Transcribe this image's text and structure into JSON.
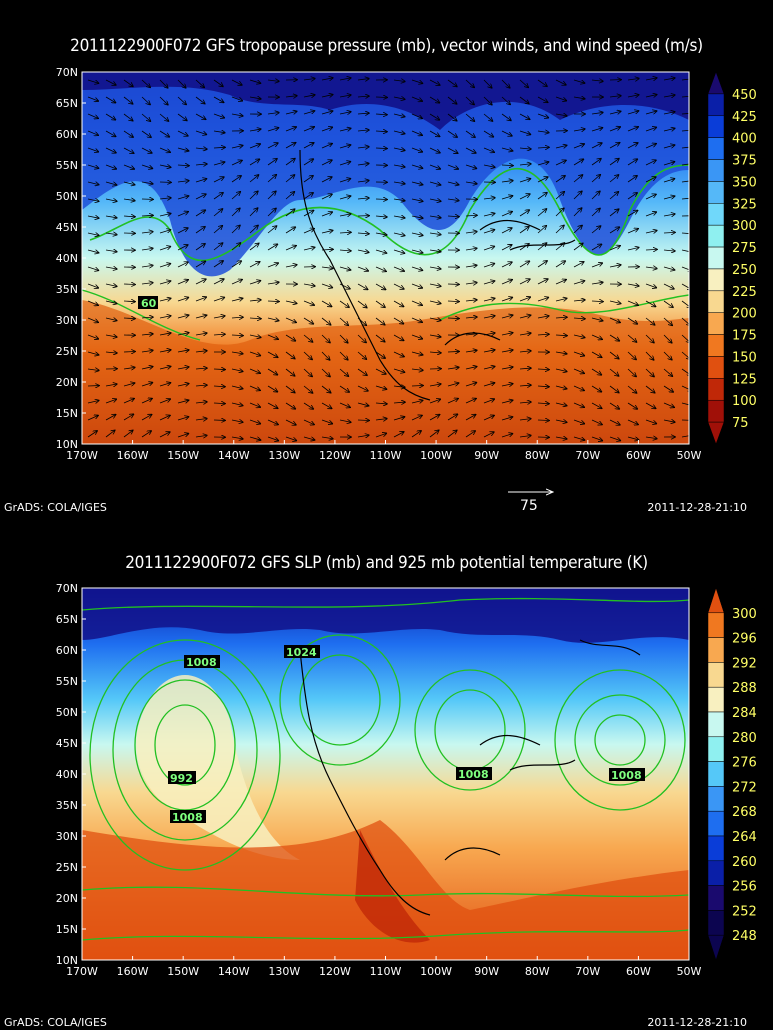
{
  "panel1": {
    "title": "2011122900F072 GFS tropopause pressure (mb), vector winds, and wind speed (m/s)",
    "lat_labels": [
      "70N",
      "65N",
      "60N",
      "55N",
      "50N",
      "45N",
      "40N",
      "35N",
      "30N",
      "25N",
      "20N",
      "15N",
      "10N"
    ],
    "lon_labels": [
      "170W",
      "160W",
      "150W",
      "140W",
      "130W",
      "120W",
      "110W",
      "100W",
      "90W",
      "80W",
      "70W",
      "60W",
      "50W"
    ],
    "colorbar": {
      "values": [
        "450",
        "425",
        "400",
        "375",
        "350",
        "325",
        "300",
        "275",
        "250",
        "225",
        "200",
        "175",
        "150",
        "125",
        "100",
        "75"
      ],
      "colors": [
        "#1a0a6e",
        "#0a1fa8",
        "#0a3dd8",
        "#1e6ef0",
        "#3a96f5",
        "#55b8f8",
        "#70d8fa",
        "#8ff0f0",
        "#c8f8f0",
        "#f8f0c0",
        "#f8d890",
        "#f8a850",
        "#f07820",
        "#e05010",
        "#c02808",
        "#a01008"
      ]
    },
    "contour_labels": [
      {
        "text": "60"
      }
    ],
    "vector_scale_label": "75"
  },
  "panel2": {
    "title": "2011122900F072 GFS SLP (mb) and 925 mb potential temperature (K)",
    "lat_labels": [
      "70N",
      "65N",
      "60N",
      "55N",
      "50N",
      "45N",
      "40N",
      "35N",
      "30N",
      "25N",
      "20N",
      "15N",
      "10N"
    ],
    "lon_labels": [
      "170W",
      "160W",
      "150W",
      "140W",
      "130W",
      "120W",
      "110W",
      "100W",
      "90W",
      "80W",
      "70W",
      "60W",
      "50W"
    ],
    "colorbar": {
      "values": [
        "300",
        "296",
        "292",
        "288",
        "284",
        "280",
        "276",
        "272",
        "268",
        "264",
        "260",
        "256",
        "252",
        "248"
      ],
      "colors": [
        "#e05010",
        "#f07820",
        "#f8a850",
        "#f8d890",
        "#f8f0c0",
        "#c8f8f0",
        "#8ff0f0",
        "#55c8f8",
        "#3a96f5",
        "#1e6ef0",
        "#0a3dd8",
        "#0a1fa8",
        "#1a0a6e",
        "#0c0550"
      ]
    },
    "contour_labels": [
      {
        "text": "1008"
      },
      {
        "text": "1024"
      },
      {
        "text": "992"
      },
      {
        "text": "1008"
      },
      {
        "text": "1008"
      },
      {
        "text": "1008"
      }
    ]
  },
  "footer": {
    "credit": "GrADS: COLA/IGES",
    "timestamp": "2011-12-28-21:10"
  }
}
